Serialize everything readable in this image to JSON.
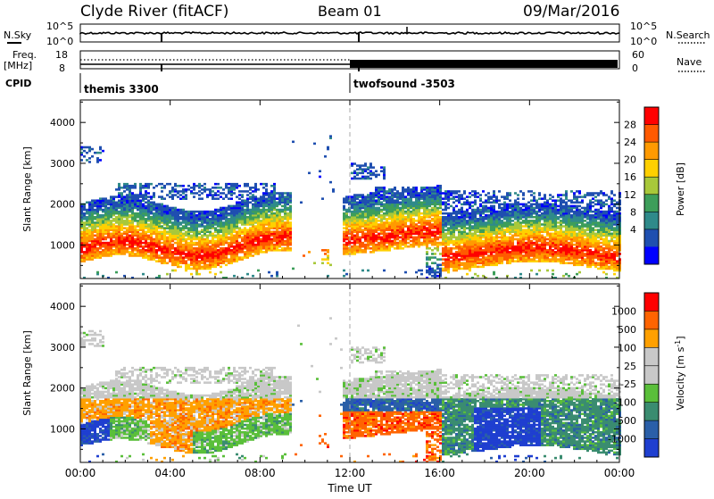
{
  "header": {
    "station": "Clyde River (fitACF)",
    "beam": "Beam 01",
    "date": "09/Mar/2016"
  },
  "strips": {
    "nsky_label": "N.Sky",
    "nsky_ticks": [
      "10^5",
      "10^0"
    ],
    "nsearch_label": "N.Search",
    "nsearch_ticks": [
      "10^5",
      "10^0"
    ],
    "freq_label": "Freq.",
    "freq_unit": "[MHz]",
    "freq_ticks": [
      "18",
      "8"
    ],
    "nave_label": "Nave",
    "nave_ticks": [
      "60",
      "0"
    ],
    "cpid_label": "CPID",
    "cpid_modes": [
      {
        "name": "themis 3300",
        "start_hour": 0,
        "end_hour": 12
      },
      {
        "name": "twofsound -3503",
        "start_hour": 12,
        "end_hour": 24
      }
    ]
  },
  "x_axis": {
    "label": "Time UT",
    "ticks": [
      "00:00",
      "04:00",
      "08:00",
      "12:00",
      "16:00",
      "20:00",
      "00:00"
    ],
    "range_hours": [
      0,
      24
    ]
  },
  "chart_data": [
    {
      "type": "heatmap",
      "title": "Power",
      "ylabel": "Slant Range [km]",
      "yticks": [
        "4000",
        "3000",
        "2000",
        "1000"
      ],
      "ylim": [
        180,
        4550
      ],
      "colorbar": {
        "label": "Power [dB]",
        "ticks": [
          "28",
          "24",
          "20",
          "16",
          "12",
          "8",
          "4"
        ],
        "range": [
          0,
          32
        ],
        "colors": [
          "#0000ff",
          "#1f4fb0",
          "#2f8a8a",
          "#3d9e5a",
          "#a8c83a",
          "#ffd000",
          "#ff9a00",
          "#ff5a00",
          "#ff0000"
        ]
      },
      "dashed_marker_hour": 12,
      "data_gap_hours": [
        9.3,
        11.6
      ]
    },
    {
      "type": "heatmap",
      "title": "Velocity",
      "ylabel": "Slant Range [km]",
      "yticks": [
        "4000",
        "3000",
        "2000",
        "1000"
      ],
      "ylim": [
        180,
        4550
      ],
      "colorbar": {
        "label": "Velocity [m s",
        "label_sup": "-1",
        "label_tail": "]",
        "ticks": [
          "1000",
          "500",
          "100",
          "25",
          "-25",
          "-100",
          "-500",
          "-1000"
        ],
        "colors": [
          "#1f3fd0",
          "#2a5fa8",
          "#3a8c70",
          "#5abf3a",
          "#c8c8c8",
          "#c8c8c8",
          "#ffa000",
          "#ff6400",
          "#ff0000"
        ]
      },
      "dashed_marker_hour": 12,
      "data_gap_hours": [
        9.3,
        11.6
      ]
    }
  ]
}
